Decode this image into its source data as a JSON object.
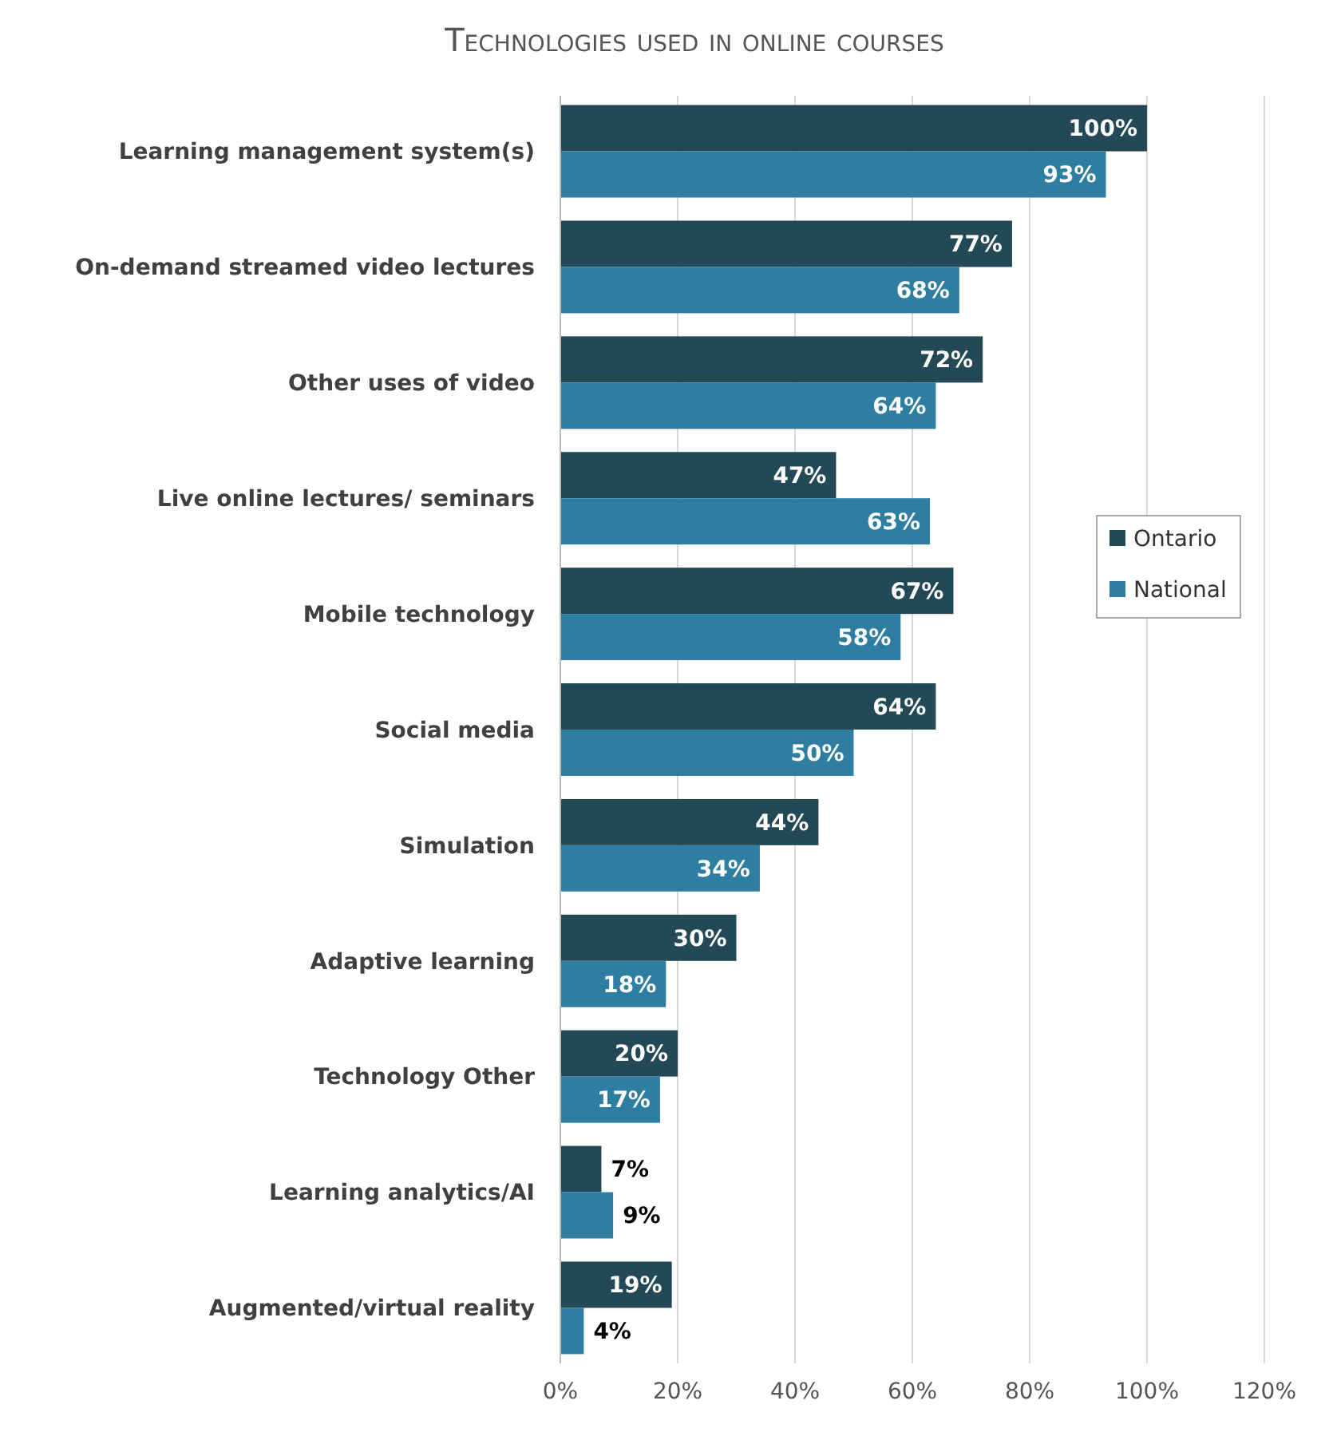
{
  "chart_data": {
    "type": "bar",
    "orientation": "horizontal",
    "title": "Technologies used in online courses",
    "categories": [
      "Learning management system(s)",
      "On-demand streamed video lectures",
      "Other uses of video",
      "Live online lectures/ seminars",
      "Mobile technology",
      "Social media",
      "Simulation",
      "Adaptive learning",
      "Technology Other",
      "Learning analytics/AI",
      "Augmented/virtual reality"
    ],
    "series": [
      {
        "name": "Ontario",
        "color": "#234856",
        "values": [
          100,
          77,
          72,
          47,
          67,
          64,
          44,
          30,
          20,
          7,
          19
        ],
        "value_labels": [
          "100%",
          "77%",
          "72%",
          "47%",
          "67%",
          "64%",
          "44%",
          "30%",
          "20%",
          "7%",
          "19%"
        ]
      },
      {
        "name": "National",
        "color": "#2e7ea2",
        "values": [
          93,
          68,
          64,
          63,
          58,
          50,
          34,
          18,
          17,
          9,
          4
        ],
        "value_labels": [
          "93%",
          "68%",
          "64%",
          "63%",
          "58%",
          "50%",
          "34%",
          "18%",
          "17%",
          "9%",
          "4%"
        ]
      }
    ],
    "xlim": [
      0,
      120
    ],
    "xticks": [
      {
        "value": 0,
        "label": "0%"
      },
      {
        "value": 20,
        "label": "20%"
      },
      {
        "value": 40,
        "label": "40%"
      },
      {
        "value": 60,
        "label": "60%"
      },
      {
        "value": 80,
        "label": "80%"
      },
      {
        "value": 100,
        "label": "100%"
      },
      {
        "value": 120,
        "label": "120%"
      }
    ],
    "grid": "x",
    "legend": "right"
  }
}
